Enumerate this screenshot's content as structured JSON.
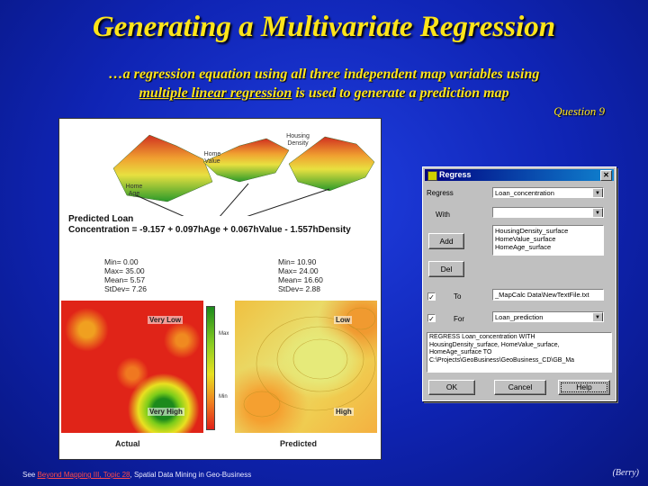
{
  "slide": {
    "title": "Generating a Multivariate Regression",
    "subtitle_pre": "…a regression equation using all three independent map variables using",
    "subtitle_link": "multiple linear regression",
    "subtitle_post": "is used to generate a prediction map",
    "question": "Question 9"
  },
  "figure": {
    "surface_labels": [
      "Home Age",
      "Home Value",
      "Housing Density"
    ],
    "equation_line1": "Predicted Loan",
    "equation_line2": "Concentration = -9.157 + 0.097hAge + 0.067hValue - 1.557hDensity",
    "actual_stats": [
      "Min= 0.00",
      "Max= 35.00",
      "Mean= 5.57",
      "StDev= 7.26"
    ],
    "predicted_stats": [
      "Min= 10.90",
      "Max= 24.00",
      "Mean= 16.60",
      "StDev= 2.88"
    ],
    "actual_map_labels": [
      "Very Low",
      "Very High"
    ],
    "predicted_map_labels": [
      "Low",
      "High"
    ],
    "legend_max": "Max",
    "legend_min": "Min",
    "actual_label": "Actual",
    "predicted_label": "Predicted"
  },
  "dialog": {
    "title": "Regress",
    "regress_label": "Regress",
    "regress_value": "Loan_concentration",
    "with_label": "With",
    "with_value": "",
    "add_button": "Add",
    "del_button": "Del",
    "variables": [
      "HousingDensity_surface",
      "HomeValue_surface",
      "HomeAge_surface"
    ],
    "to_label": "To",
    "to_value": "_MapCalc Data\\NewTextFile.txt",
    "to_checked": true,
    "for_label": "For",
    "for_value": "Loan_prediction",
    "for_checked": true,
    "command_lines": [
      "REGRESS Loan_concentration WITH",
      "HousingDensity_surface, HomeValue_surface,",
      "HomeAge_surface TO",
      "C:\\Projects\\GeoBusiness\\GeoBusiness_CD\\GB_Ma"
    ],
    "ok_button": "OK",
    "cancel_button": "Cancel",
    "help_button": "Help"
  },
  "footer": {
    "prefix": "See",
    "link": "Beyond Mapping III, Topic 28",
    "suffix": ", Spatial Data Mining in Geo-Business",
    "credit": "(Berry)"
  },
  "colors": {
    "title": "#ffe51a",
    "background": "#1530c8",
    "link": "#ff4a4a"
  }
}
